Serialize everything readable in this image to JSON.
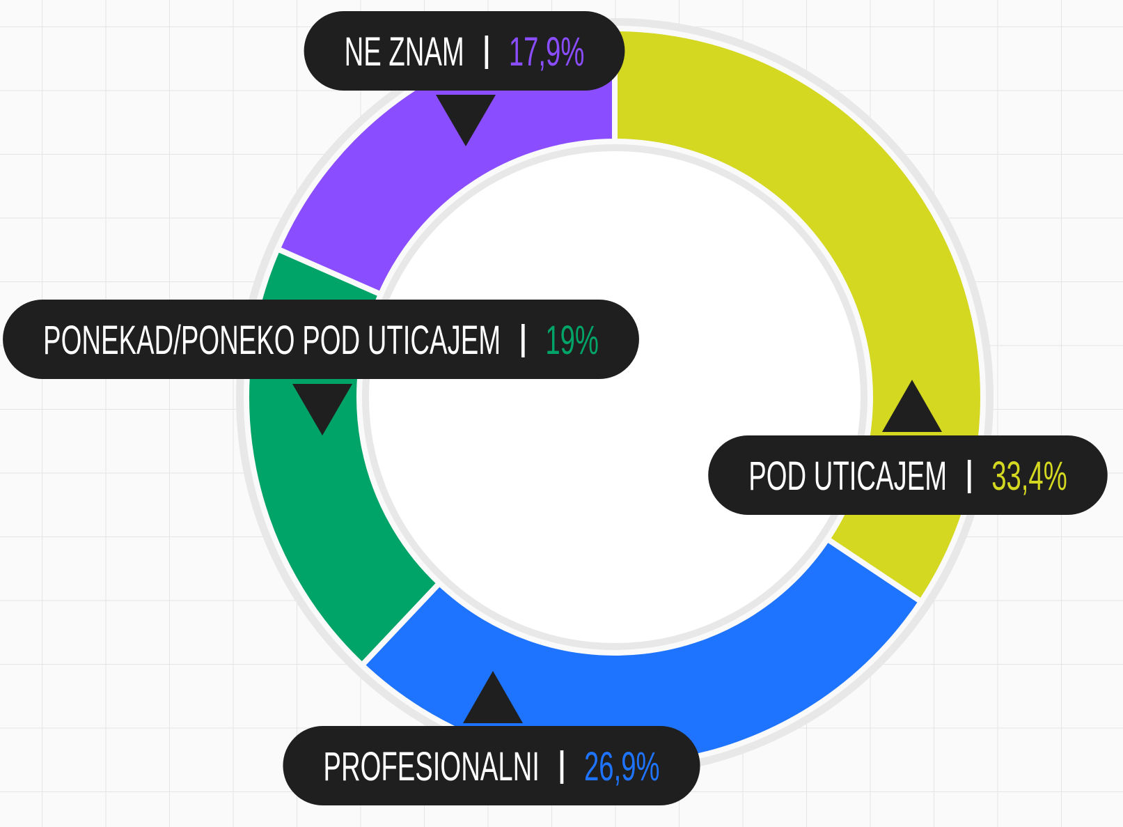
{
  "chart_data": {
    "type": "donut",
    "categories": [
      "POD UTICAJEM",
      "PROFESIONALNI",
      "PONEKAD/PONEKO POD UTICAJEM",
      "NE ZNAM"
    ],
    "values": [
      33.4,
      26.9,
      19,
      17.9
    ],
    "value_labels": [
      "33,4%",
      "26,9%",
      "19%",
      "17,9%"
    ],
    "colors": [
      "#d4d821",
      "#1e73ff",
      "#00a468",
      "#8a4dff"
    ]
  }
}
